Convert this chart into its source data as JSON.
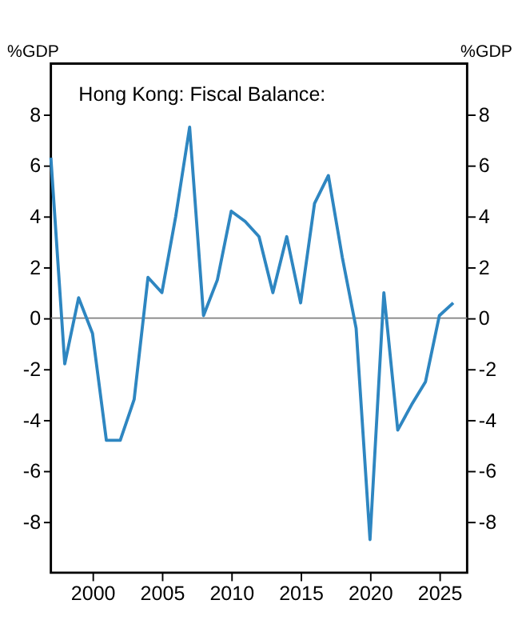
{
  "chart_data": {
    "type": "line",
    "title": "Hong Kong: Fiscal Balance:",
    "ylabel": "%GDP",
    "y2label": "%GDP",
    "x": [
      1997,
      1998,
      1999,
      2000,
      2001,
      2002,
      2003,
      2004,
      2005,
      2006,
      2007,
      2008,
      2009,
      2010,
      2011,
      2012,
      2013,
      2014,
      2015,
      2016,
      2017,
      2018,
      2019,
      2020,
      2021,
      2022,
      2023,
      2024,
      2025,
      2026
    ],
    "series": [
      {
        "color": "#2e86c1",
        "values": [
          6.3,
          -1.8,
          0.8,
          -0.6,
          -4.8,
          -4.8,
          -3.2,
          1.6,
          1.0,
          4.0,
          7.5,
          0.1,
          1.5,
          4.2,
          3.8,
          3.2,
          1.0,
          3.2,
          0.6,
          4.5,
          5.6,
          2.4,
          -0.4,
          -8.7,
          1.0,
          -4.4,
          -3.4,
          -2.5,
          0.1,
          0.6
        ]
      }
    ],
    "xlim": [
      1997,
      2027
    ],
    "xticks": [
      2000,
      2005,
      2010,
      2015,
      2020,
      2025
    ],
    "ylim": [
      -10,
      10
    ],
    "yticks": [
      -8,
      -6,
      -4,
      -2,
      0,
      2,
      4,
      6,
      8
    ],
    "y2lim": [
      -10,
      10
    ],
    "y2ticks": [
      -8,
      -6,
      -4,
      -2,
      0,
      2,
      4,
      6,
      8
    ],
    "ref_lines": [
      {
        "axis": "y",
        "value": 0,
        "color": "#808080"
      }
    ],
    "grid": false,
    "marker": "none",
    "line_style": "solid"
  }
}
